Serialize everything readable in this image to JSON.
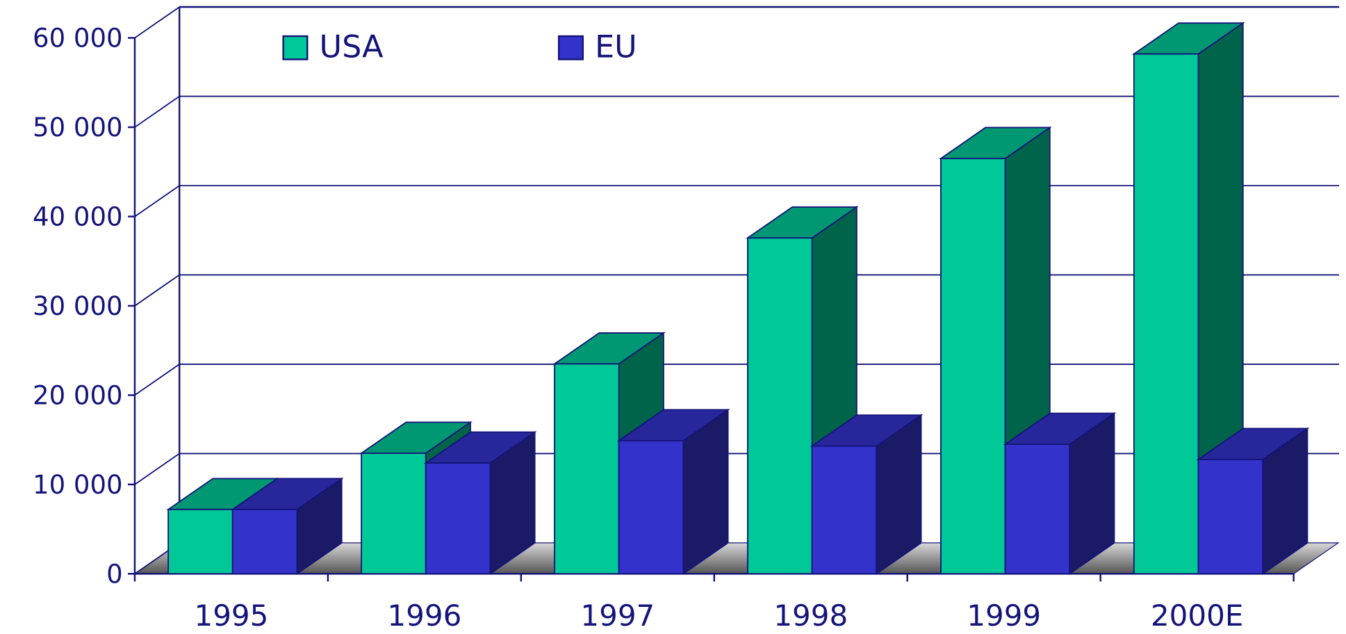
{
  "chart_data": {
    "type": "bar3d",
    "categories": [
      "1995",
      "1996",
      "1997",
      "1998",
      "1999",
      "2000E"
    ],
    "series": [
      {
        "name": "USA",
        "color": "#00c896",
        "values": [
          7200,
          13500,
          23500,
          37600,
          46500,
          58200
        ]
      },
      {
        "name": "EU",
        "color": "#3333cc",
        "values": [
          7200,
          12400,
          14900,
          14300,
          14500,
          12800
        ]
      }
    ],
    "ylim": [
      0,
      60000
    ],
    "yticks": [
      0,
      {
        "value": 10000,
        "label": "10 000"
      },
      {
        "value": 20000,
        "label": "20 000"
      },
      {
        "value": 30000,
        "label": "30 000"
      },
      {
        "value": 40000,
        "label": "40 000"
      },
      {
        "value": 50000,
        "label": "50 000"
      },
      {
        "value": 60000,
        "label": "60 000"
      }
    ],
    "grid": true
  }
}
